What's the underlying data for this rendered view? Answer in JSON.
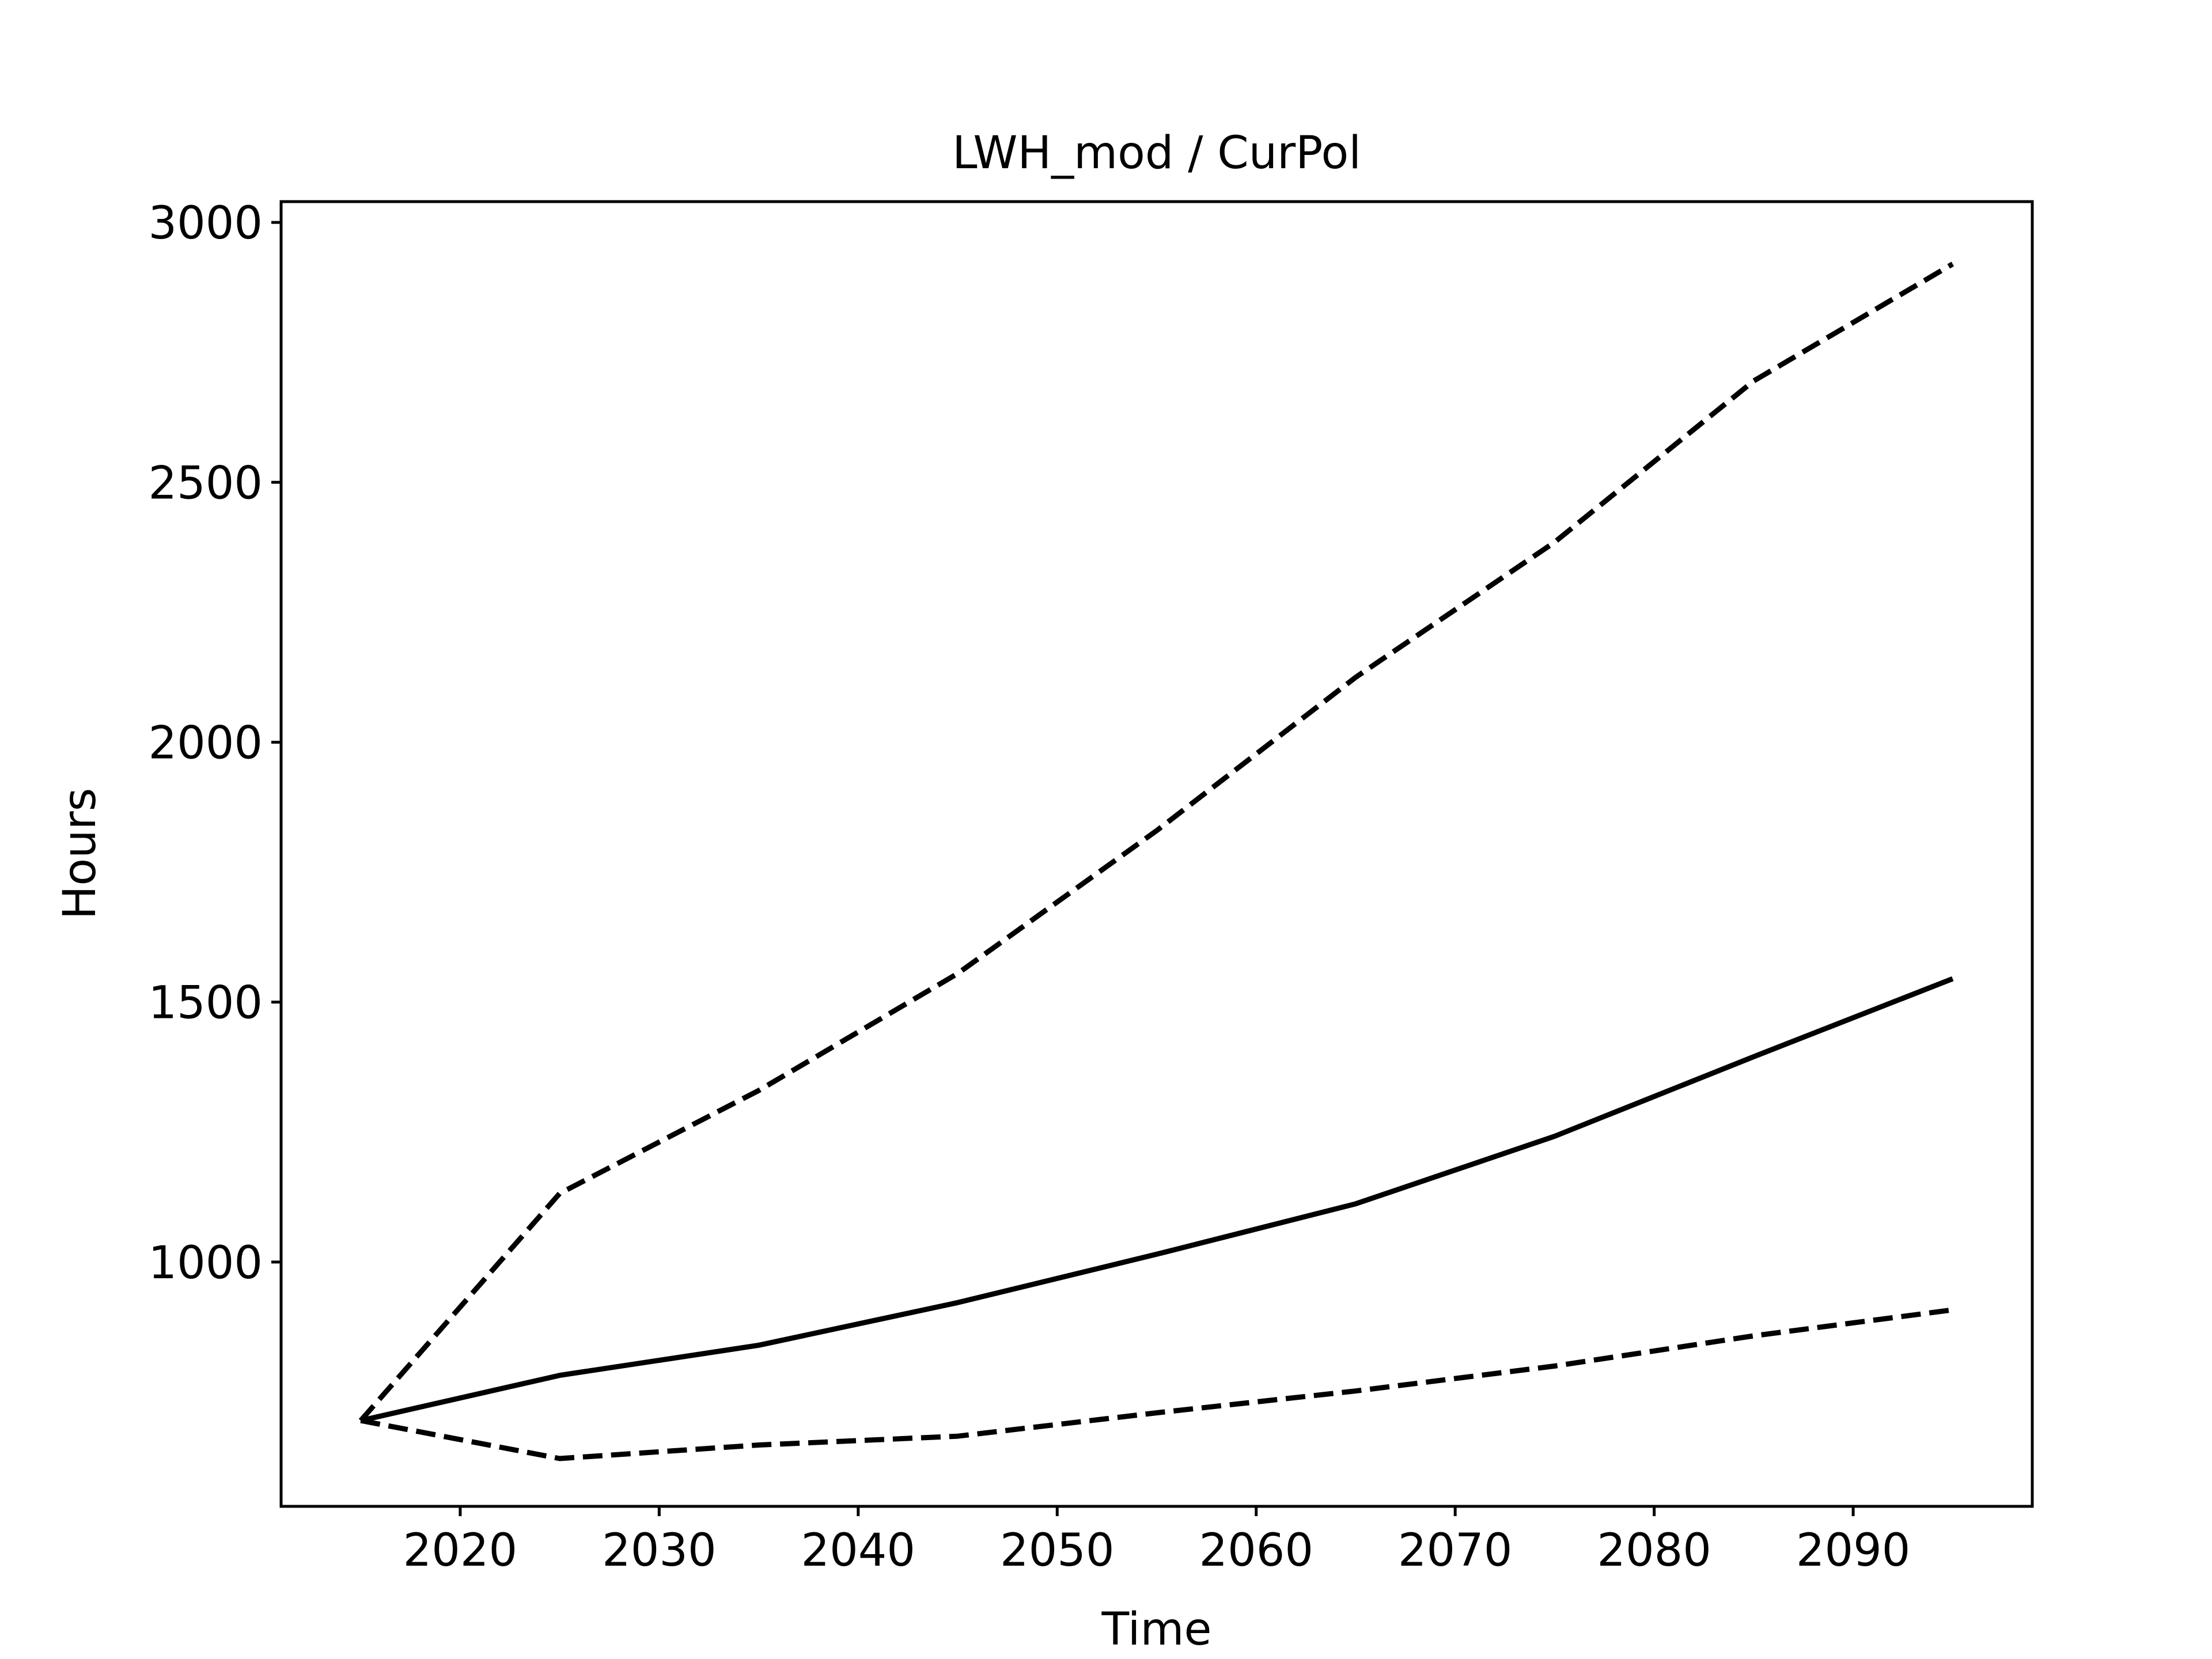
{
  "chart_data": {
    "type": "line",
    "title": "LWH_mod / CurPol",
    "xlabel": "Time",
    "ylabel": "Hours",
    "xlim": [
      2011,
      2099
    ],
    "ylim": [
      530,
      3040
    ],
    "xticks": [
      2020,
      2030,
      2040,
      2050,
      2060,
      2070,
      2080,
      2090
    ],
    "yticks": [
      1000,
      1500,
      2000,
      2500,
      3000
    ],
    "grid": false,
    "legend": "none",
    "x": [
      2015,
      2025,
      2035,
      2045,
      2055,
      2065,
      2075,
      2085,
      2095
    ],
    "series": [
      {
        "values": [
          695,
          782,
          840,
          922,
          1015,
          1112,
          1242,
          1395,
          1545
        ],
        "style": "solid",
        "color": "#000000"
      },
      {
        "values": [
          695,
          1132,
          1330,
          1555,
          1830,
          2125,
          2385,
          2695,
          2920
        ],
        "style": "dashed",
        "color": "#000000"
      },
      {
        "values": [
          695,
          622,
          648,
          665,
          710,
          752,
          800,
          858,
          908
        ],
        "style": "dashed",
        "color": "#000000"
      }
    ]
  }
}
